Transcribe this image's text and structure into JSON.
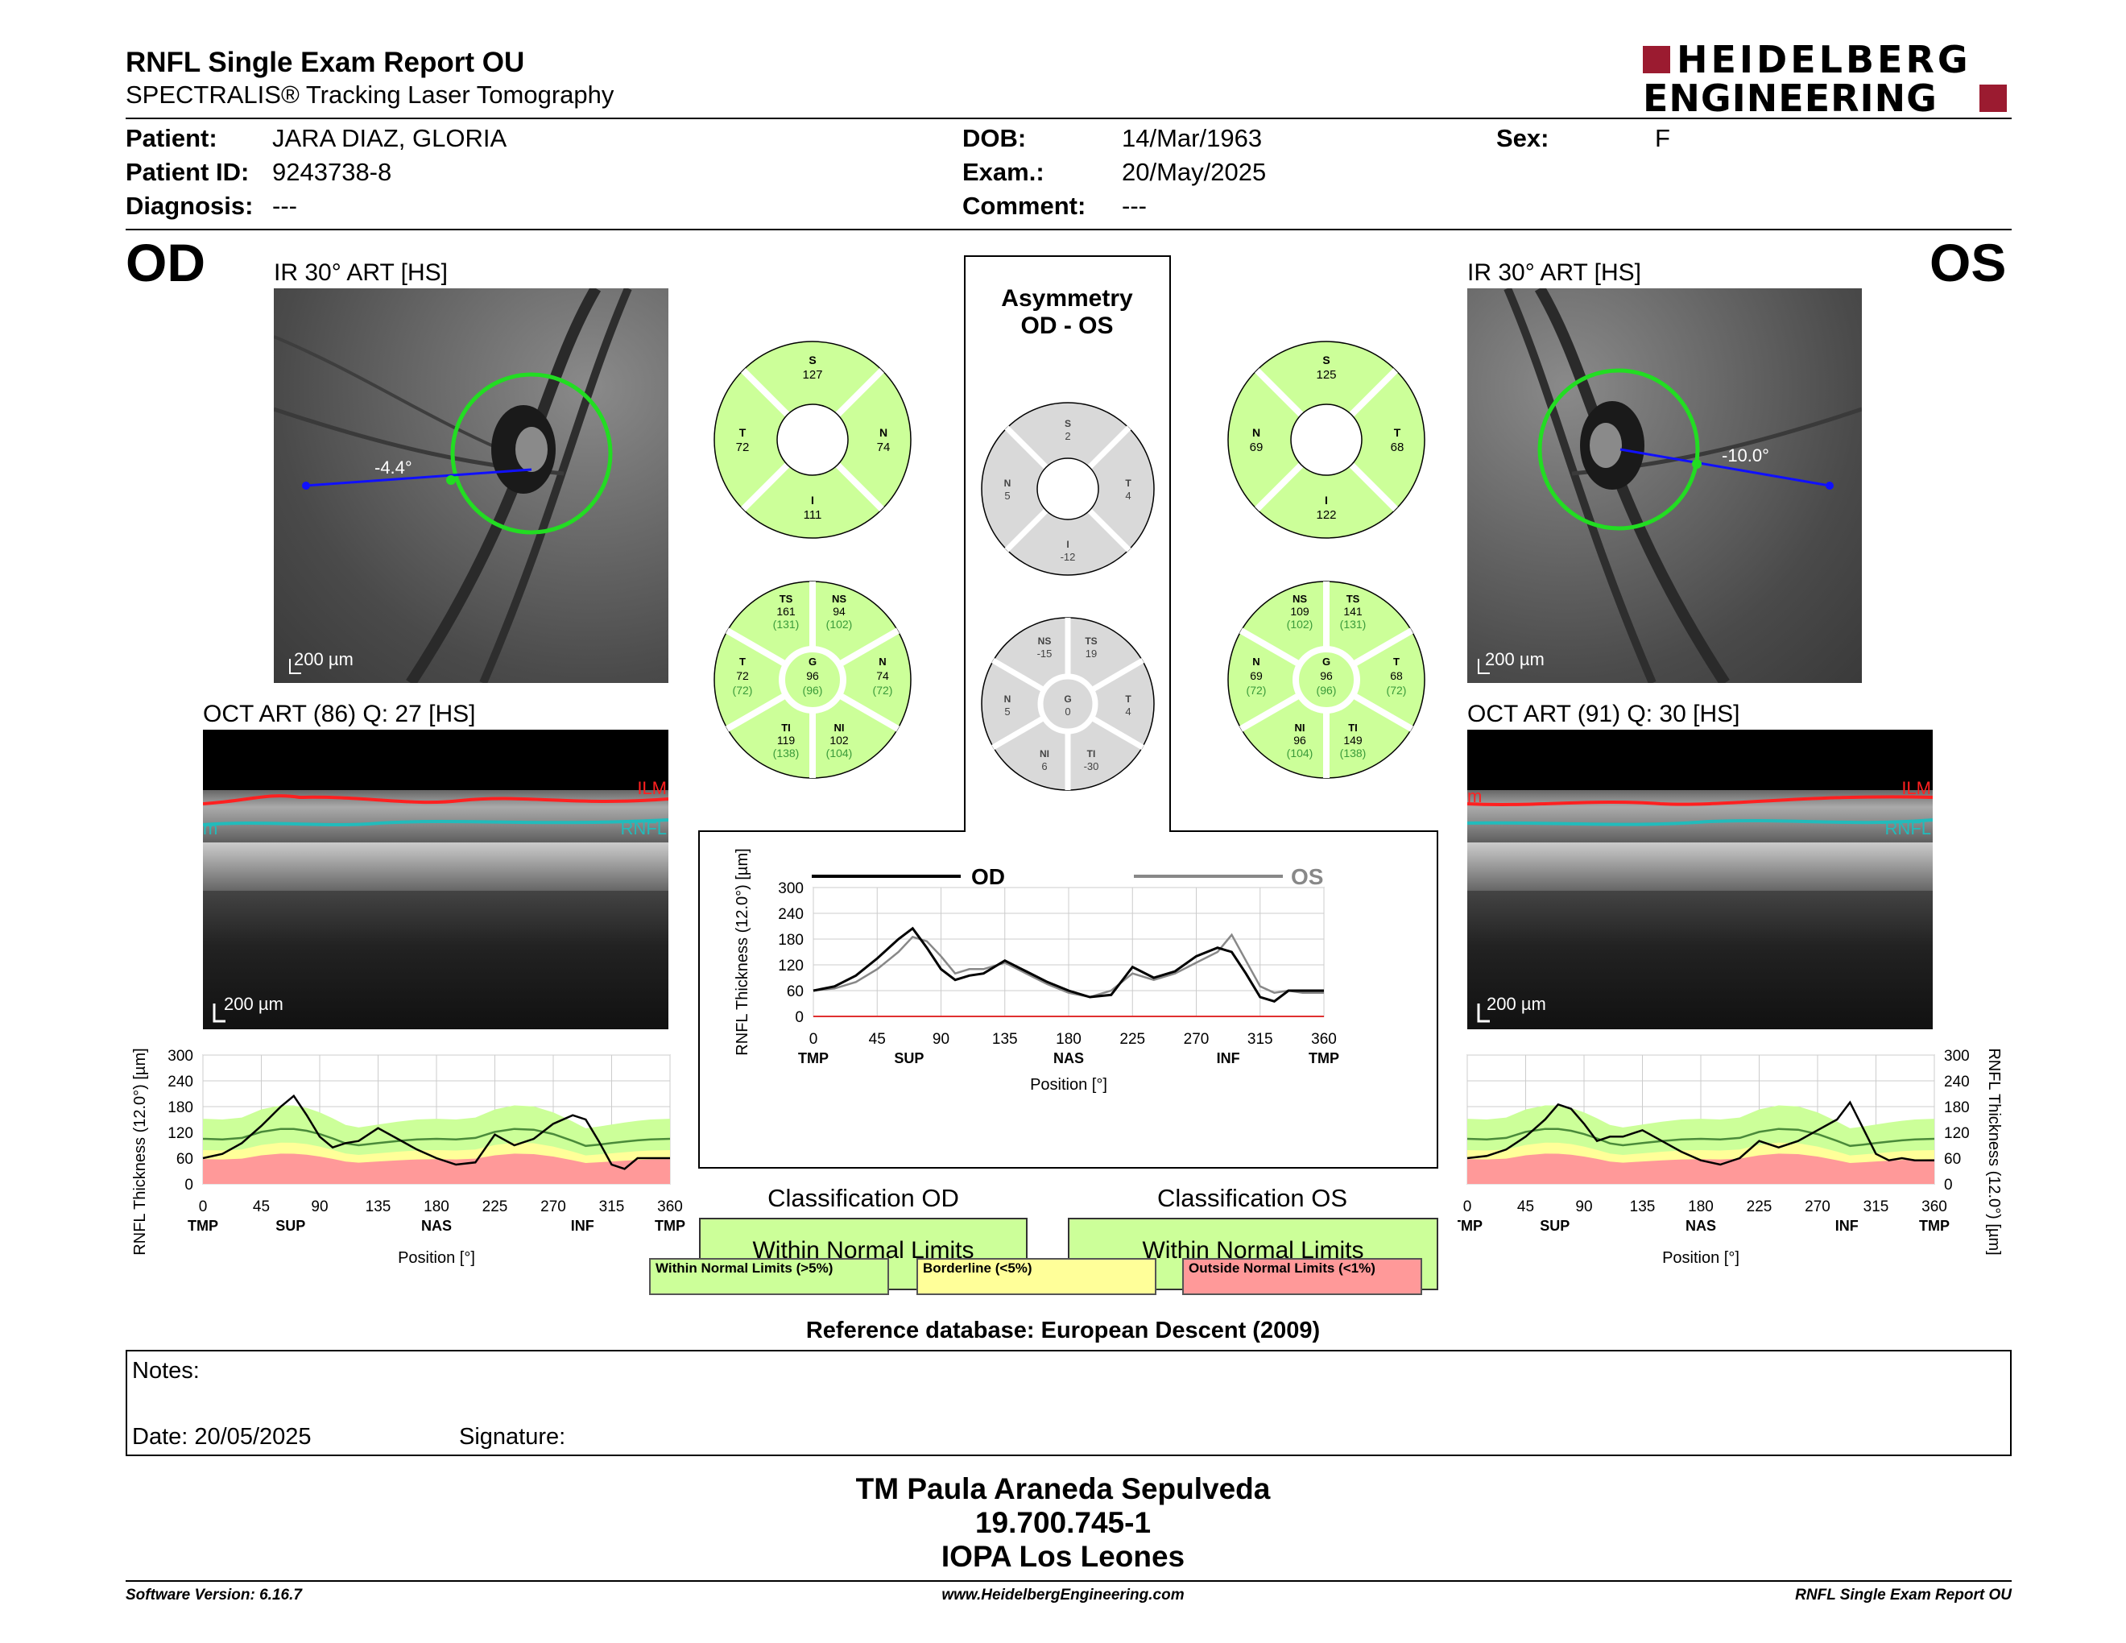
{
  "header": {
    "title": "RNFL Single Exam Report OU",
    "subtitle": "SPECTRALIS® Tracking Laser Tomography",
    "logo_line1": "HEIDELBERG",
    "logo_line2": "ENGINEERING",
    "logo_color": "#9b1b30"
  },
  "patient": {
    "patient_label": "Patient:",
    "patient_value": "JARA DIAZ, GLORIA",
    "id_label": "Patient ID:",
    "id_value": "9243738-8",
    "diagnosis_label": "Diagnosis:",
    "diagnosis_value": "---",
    "dob_label": "DOB:",
    "dob_value": "14/Mar/1963",
    "exam_label": "Exam.:",
    "exam_value": "20/May/2025",
    "comment_label": "Comment:",
    "comment_value": "---",
    "sex_label": "Sex:",
    "sex_value": "F"
  },
  "od": {
    "eye": "OD",
    "ir_title": "IR 30° ART [HS]",
    "angle": "-4.4°",
    "scale": "200 µm",
    "oct_title": "OCT ART (86) Q: 27 [HS]",
    "oct_scale": "200 µm",
    "ilm": "ILM",
    "rnfl": "RNFL",
    "rnfl_frag": "m",
    "sectors4": {
      "S": "127",
      "T": "72",
      "N": "74",
      "I": "111"
    },
    "sectors6": {
      "TS": [
        "161",
        "(131)"
      ],
      "NS": [
        "94",
        "(102)"
      ],
      "T": [
        "72",
        "(72)"
      ],
      "G": [
        "96",
        "(96)"
      ],
      "N": [
        "74",
        "(72)"
      ],
      "TI": [
        "119",
        "(138)"
      ],
      "NI": [
        "102",
        "(104)"
      ]
    }
  },
  "os": {
    "eye": "OS",
    "ir_title": "IR 30° ART [HS]",
    "angle": "-10.0°",
    "scale": "200 µm",
    "oct_title": "OCT ART (91) Q: 30 [HS]",
    "oct_scale": "200 µm",
    "ilm": "ILM",
    "rnfl": "RNFL",
    "rnfl_frag": "m",
    "sectors4": {
      "S": "125",
      "N": "69",
      "T": "68",
      "I": "122"
    },
    "sectors6": {
      "NS": [
        "109",
        "(102)"
      ],
      "TS": [
        "141",
        "(131)"
      ],
      "N": [
        "69",
        "(72)"
      ],
      "G": [
        "96",
        "(96)"
      ],
      "T": [
        "68",
        "(72)"
      ],
      "NI": [
        "96",
        "(104)"
      ],
      "TI": [
        "149",
        "(138)"
      ]
    }
  },
  "asym": {
    "title1": "Asymmetry",
    "title2": "OD - OS",
    "sectors4": {
      "S": "2",
      "N": "5",
      "T": "4",
      "I": "-12"
    },
    "sectors6": {
      "NS": "-15",
      "TS": "19",
      "N": "5",
      "G": "0",
      "T": "4",
      "NI": "6",
      "TI": "-30"
    }
  },
  "center_chart": {
    "od_label": "OD",
    "os_label": "OS",
    "ylabel": "RNFL Thickness (12.0°) [µm]",
    "xlabel": "Position [°]",
    "yticks": [
      "300",
      "240",
      "180",
      "120",
      "60",
      "0"
    ],
    "xticks": [
      "0",
      "45",
      "90",
      "135",
      "180",
      "225",
      "270",
      "315",
      "360"
    ],
    "regions": [
      "TMP",
      "SUP",
      "NAS",
      "INF",
      "TMP"
    ]
  },
  "od_chart": {
    "ylabel": "RNFL Thickness (12.0°) [µm]",
    "xlabel": "Position [°]",
    "yticks": [
      "300",
      "240",
      "180",
      "120",
      "60",
      "0"
    ],
    "xticks": [
      "0",
      "45",
      "90",
      "135",
      "180",
      "225",
      "270",
      "315",
      "360"
    ],
    "regions": [
      "TMP",
      "SUP",
      "NAS",
      "INF",
      "TMP"
    ]
  },
  "os_chart": {
    "ylabel": "RNFL Thickness (12.0°) [µm]",
    "xlabel": "Position [°]",
    "yticks": [
      "300",
      "240",
      "180",
      "120",
      "60",
      "0"
    ],
    "xticks": [
      "0",
      "45",
      "90",
      "135",
      "180",
      "225",
      "270",
      "315",
      "360"
    ],
    "regions": [
      "TMP",
      "SUP",
      "NAS",
      "INF",
      "TMP"
    ]
  },
  "chart_data": [
    {
      "type": "line",
      "xlabel": "Position [°]",
      "ylabel": "RNFL Thickness (12.0°) [µm]",
      "xlim": [
        0,
        360
      ],
      "ylim": [
        0,
        300
      ],
      "x": [
        0,
        15,
        30,
        45,
        60,
        70,
        80,
        90,
        100,
        110,
        120,
        135,
        150,
        165,
        180,
        195,
        210,
        225,
        240,
        255,
        270,
        285,
        295,
        305,
        315,
        325,
        335,
        345,
        360
      ],
      "series": [
        {
          "name": "OD",
          "values": [
            60,
            70,
            95,
            135,
            180,
            205,
            160,
            110,
            85,
            95,
            100,
            130,
            105,
            80,
            60,
            45,
            50,
            115,
            90,
            105,
            140,
            160,
            150,
            100,
            45,
            35,
            60,
            60,
            60
          ]
        },
        {
          "name": "OS",
          "values": [
            60,
            65,
            80,
            110,
            150,
            185,
            175,
            140,
            100,
            110,
            110,
            125,
            100,
            75,
            55,
            45,
            60,
            100,
            85,
            100,
            125,
            150,
            190,
            130,
            70,
            55,
            60,
            55,
            55
          ]
        }
      ]
    }
  ],
  "classification": {
    "od_title": "Classification OD",
    "od_value": "Within Normal Limits",
    "os_title": "Classification OS",
    "os_value": "Within Normal Limits",
    "legend": [
      "Within Normal Limits (>5%)",
      "Borderline (<5%)",
      "Outside Normal Limits (<1%)"
    ],
    "colors": [
      "#ccff99",
      "#ffff99",
      "#ff9999"
    ]
  },
  "reference": "Reference database: European Descent (2009)",
  "notes": {
    "label": "Notes:",
    "date": "Date: 20/05/2025",
    "signature": "Signature:"
  },
  "operator": {
    "name": "TM Paula Araneda Sepulveda",
    "id": "19.700.745-1",
    "clinic": "IOPA Los Leones"
  },
  "footer": {
    "software": "Software Version: 6.16.7",
    "website": "www.HeidelbergEngineering.com",
    "report": "RNFL Single Exam Report OU"
  }
}
